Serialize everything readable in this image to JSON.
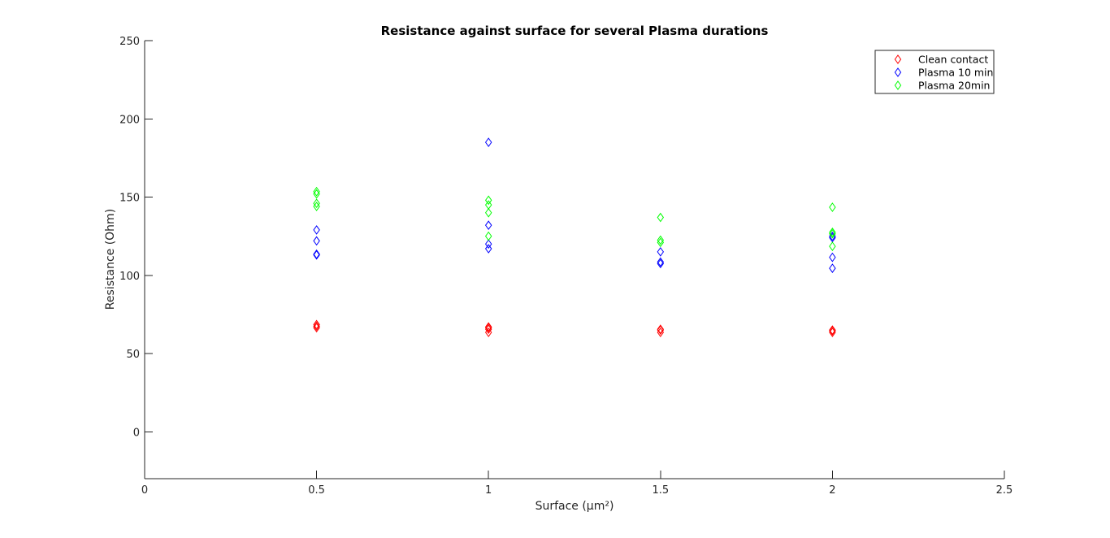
{
  "chart_data": {
    "type": "scatter",
    "title": "Resistance against surface for several Plasma durations",
    "xlabel": "Surface (µm²)",
    "ylabel": "Resistance (Ohm)",
    "xlim": [
      0,
      2.5
    ],
    "ylim": [
      -30,
      250
    ],
    "xticks": [
      0,
      0.5,
      1,
      1.5,
      2,
      2.5
    ],
    "xtick_labels": [
      "0",
      "0.5",
      "1",
      "1.5",
      "2",
      "2.5"
    ],
    "yticks": [
      0,
      50,
      100,
      150,
      200,
      250
    ],
    "ytick_labels": [
      "0",
      "50",
      "100",
      "150",
      "200",
      "250"
    ],
    "grid": false,
    "legend_position": "top-right",
    "marker": "diamond",
    "series": [
      {
        "name": "Clean contact",
        "color": "#ff0000",
        "points": [
          [
            0.5,
            66.5
          ],
          [
            0.5,
            67.5
          ],
          [
            0.5,
            68.5
          ],
          [
            1,
            63.5
          ],
          [
            1,
            65.5
          ],
          [
            1,
            66.5
          ],
          [
            1,
            67
          ],
          [
            1.5,
            63.5
          ],
          [
            1.5,
            65
          ],
          [
            1.5,
            65.5
          ],
          [
            2,
            63.5
          ],
          [
            2,
            64.5
          ],
          [
            2,
            65
          ]
        ]
      },
      {
        "name": "Plasma 10 min",
        "color": "#0000ff",
        "points": [
          [
            0.5,
            113
          ],
          [
            0.5,
            113.5
          ],
          [
            0.5,
            122
          ],
          [
            0.5,
            129
          ],
          [
            1,
            117
          ],
          [
            1,
            120
          ],
          [
            1,
            132
          ],
          [
            1,
            185
          ],
          [
            1.5,
            107.5
          ],
          [
            1.5,
            108.5
          ],
          [
            1.5,
            115
          ],
          [
            2,
            104.5
          ],
          [
            2,
            111.5
          ],
          [
            2,
            124
          ],
          [
            2,
            125
          ]
        ]
      },
      {
        "name": "Plasma 20min",
        "color": "#00ff00",
        "points": [
          [
            0.5,
            144
          ],
          [
            0.5,
            146
          ],
          [
            0.5,
            152
          ],
          [
            0.5,
            153.5
          ],
          [
            1,
            125
          ],
          [
            1,
            140
          ],
          [
            1,
            145
          ],
          [
            1,
            148
          ],
          [
            1.5,
            121
          ],
          [
            1.5,
            122.5
          ],
          [
            1.5,
            137
          ],
          [
            2,
            118.5
          ],
          [
            2,
            126.5
          ],
          [
            2,
            127.5
          ],
          [
            2,
            143.5
          ]
        ]
      }
    ]
  }
}
